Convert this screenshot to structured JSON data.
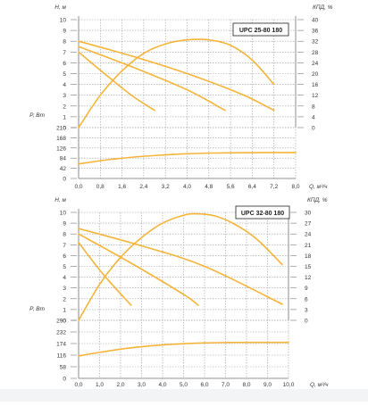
{
  "colors": {
    "curve": "#F4B43A",
    "grid": "#9A9A9A",
    "text": "#333333",
    "title_box": "#222222"
  },
  "chart_data": [
    {
      "type": "line",
      "title": "UPC 25-80 180",
      "ylabel_left": "H, м",
      "ylabel_right": "КПД, %",
      "ylabel_power": "P, Вт",
      "xlabel": "Q, м³/ч",
      "x_ticks": [
        "0,0",
        "0,8",
        "1,6",
        "2,4",
        "3,2",
        "4,0",
        "4,8",
        "5,6",
        "6,4",
        "7,2",
        "8,0"
      ],
      "xlim": [
        0,
        8.0
      ],
      "head_ticks": [
        "10",
        "9",
        "8",
        "7",
        "6",
        "5",
        "4",
        "3",
        "2",
        "1",
        "0"
      ],
      "head_ylim": [
        0,
        10
      ],
      "eff_ticks": [
        "40",
        "36",
        "32",
        "28",
        "24",
        "20",
        "16",
        "12",
        "8",
        "4",
        "0"
      ],
      "eff_ylim": [
        0,
        40
      ],
      "power_ticks": [
        "210",
        "168",
        "126",
        "84",
        "42",
        "0"
      ],
      "power_ylim": [
        0,
        210
      ],
      "head_series": [
        {
          "x": [
            0,
            2.0,
            4.0,
            6.0,
            7.2
          ],
          "y": [
            8.0,
            6.6,
            5.0,
            3.1,
            1.6
          ]
        },
        {
          "x": [
            0,
            2.0,
            4.0,
            5.4
          ],
          "y": [
            7.5,
            5.6,
            3.5,
            1.6
          ]
        },
        {
          "x": [
            0,
            1.0,
            2.0,
            2.8
          ],
          "y": [
            7.0,
            4.9,
            2.9,
            1.6
          ]
        }
      ],
      "efficiency": {
        "x": [
          0,
          0.8,
          1.6,
          2.4,
          3.2,
          4.0,
          4.8,
          5.6,
          6.4,
          7.2
        ],
        "y": [
          0,
          12,
          21,
          27.5,
          31,
          32.5,
          32.5,
          30.5,
          25,
          16
        ]
      },
      "power": {
        "x": [
          0,
          1.0,
          2.0,
          3.0,
          4.0,
          5.0,
          6.0,
          7.0,
          8.0
        ],
        "y": [
          60,
          76,
          88,
          96,
          102,
          105,
          106,
          107,
          107
        ]
      }
    },
    {
      "type": "line",
      "title": "UPC 32-80 180",
      "ylabel_left": "H, м",
      "ylabel_right": "КПД, %",
      "ylabel_power": "P, Вт",
      "xlabel": "Q, м³/ч",
      "x_ticks": [
        "0,0",
        "1,0",
        "2,0",
        "3,0",
        "4,0",
        "5,0",
        "6,0",
        "7,0",
        "8,0",
        "9,0",
        "10,0"
      ],
      "xlim": [
        0,
        10
      ],
      "head_ticks": [
        "10",
        "9",
        "8",
        "7",
        "6",
        "5",
        "4",
        "3",
        "2",
        "1",
        "0"
      ],
      "head_ylim": [
        0,
        10
      ],
      "eff_ticks": [
        "30",
        "27",
        "24",
        "21",
        "18",
        "15",
        "12",
        "9",
        "6",
        "3",
        "0"
      ],
      "eff_ylim": [
        0,
        30
      ],
      "power_ticks": [
        "290",
        "232",
        "174",
        "116",
        "58",
        "0"
      ],
      "power_ylim": [
        0,
        290
      ],
      "head_series": [
        {
          "x": [
            0,
            3.0,
            6.0,
            9.7
          ],
          "y": [
            8.5,
            6.9,
            5.0,
            1.5
          ]
        },
        {
          "x": [
            0,
            2.5,
            5.0,
            5.7
          ],
          "y": [
            8.0,
            5.3,
            2.4,
            1.4
          ]
        },
        {
          "x": [
            0,
            1.2,
            2.5
          ],
          "y": [
            7.2,
            4.2,
            1.4
          ]
        }
      ],
      "efficiency": {
        "x": [
          0,
          1.0,
          2.0,
          3.0,
          4.0,
          5.0,
          5.6,
          6.5,
          7.5,
          8.5,
          9.7
        ],
        "y": [
          0,
          10,
          17.5,
          23,
          27,
          29.2,
          29.6,
          29,
          26.5,
          22.5,
          15.5
        ]
      },
      "power": {
        "x": [
          0,
          1.0,
          2.0,
          3.0,
          4.0,
          5.0,
          6.0,
          7.0,
          8.0,
          9.0,
          10.0
        ],
        "y": [
          112,
          130,
          146,
          158,
          167,
          173,
          177,
          179,
          180,
          180,
          180
        ]
      }
    }
  ]
}
